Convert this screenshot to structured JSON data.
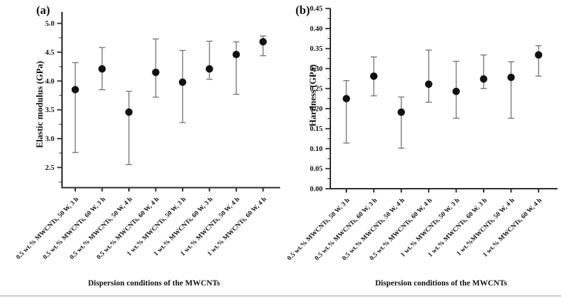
{
  "figure_bottom_border_color": "#c9c9c9",
  "chart_data": [
    {
      "type": "scatter",
      "panel_label": "(a)",
      "xlabel": "Dispersion conditions of the MWCNTs",
      "ylabel": "Elastic modulus (GPa)",
      "ylim": [
        2.15,
        5.2
      ],
      "yticks": [
        2.5,
        3.0,
        3.5,
        4.0,
        4.5,
        5.0
      ],
      "ytick_labels": [
        "2.5",
        "3.0",
        "3.5",
        "4.0",
        "4.5",
        "5.0"
      ],
      "minor_tick_step": 0.25,
      "grid": false,
      "legend": "none",
      "marker": "filled-circle",
      "marker_color": "#111111",
      "errorbar_color": "#7a7a7a",
      "categories": [
        "0.5 wt.% MWCNTs, 50 W, 3 h",
        "0.5 wt.% MWCNTs, 60 W, 3 h",
        "0.5 wt.% MWCNTs, 50 W, 4 h",
        "0.5 wt.% MWCNTs, 60 W, 4 h",
        "1 wt.% MWCNTs, 50 W, 3 h",
        "1 wt.% MWCNTs, 60 W, 3 h",
        "1 wt.% MWCNTs, 50 W, 4 h",
        "1 wt.% MWCNTs, 60 W, 4 h"
      ],
      "series": [
        {
          "name": "Elastic modulus",
          "values": [
            3.85,
            4.21,
            3.46,
            4.15,
            3.98,
            4.21,
            4.46,
            4.68
          ],
          "err_low": [
            2.76,
            3.85,
            2.55,
            3.72,
            3.28,
            4.03,
            3.77,
            4.44
          ],
          "err_high": [
            4.32,
            4.58,
            3.82,
            4.73,
            4.53,
            4.69,
            4.68,
            4.78
          ]
        }
      ]
    },
    {
      "type": "scatter",
      "panel_label": "(b)",
      "xlabel": "Dispersion conditions of the MWCNTs",
      "ylabel": "Hardness (GPa)",
      "ylim": [
        0,
        0.4504
      ],
      "yticks": [
        0.0,
        0.05,
        0.1,
        0.15,
        0.2,
        0.25,
        0.3,
        0.35,
        0.4,
        0.45
      ],
      "ytick_labels": [
        "0.00",
        "0.05",
        "0.10",
        "0.15",
        "0.20",
        "0.25",
        "0.30",
        "0.35",
        "0.40",
        "0.45"
      ],
      "minor_tick_step": 0.025,
      "grid": false,
      "legend": "none",
      "marker": "filled-circle",
      "marker_color": "#111111",
      "errorbar_color": "#7a7a7a",
      "categories": [
        "0.5 wt.% MWCNTs, 50 W, 3 h",
        "0.5 wt.% MWCNTs, 60 W, 3 h",
        "0.5 wt.% MWCNTs, 50 W, 4 h",
        "0.5 wt.% MWCNTs, 60 W, 4 h",
        "1 wt.% MWCNTs, 50 W, 3 h",
        "1 wt.% MWCNTs, 60 W, 3 h",
        "1 wt.%MWCNTs, 50 W, 4 h",
        "1 wt.% MWCNTs, 60 W, 4 h"
      ],
      "series": [
        {
          "name": "Hardness",
          "values": [
            0.225,
            0.281,
            0.191,
            0.261,
            0.243,
            0.274,
            0.278,
            0.334
          ],
          "err_low": [
            0.114,
            0.232,
            0.101,
            0.216,
            0.176,
            0.25,
            0.176,
            0.281
          ],
          "err_high": [
            0.27,
            0.329,
            0.229,
            0.346,
            0.318,
            0.334,
            0.317,
            0.357
          ]
        }
      ]
    }
  ]
}
